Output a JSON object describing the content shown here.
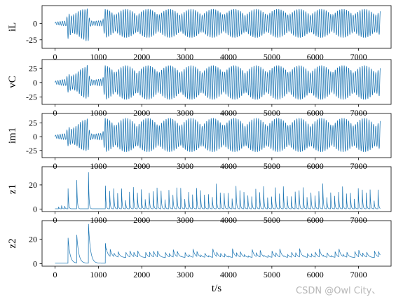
{
  "watermark": "CSDN @Owl City、",
  "chart_data": [
    {
      "type": "line",
      "ylabel": "iL",
      "xlabel": "",
      "xlim": [
        -300,
        7750
      ],
      "ylim": [
        -38,
        27
      ],
      "yticks": [
        -25,
        0
      ],
      "xticks": [
        0,
        1000,
        2000,
        3000,
        4000,
        5000,
        6000,
        7000
      ],
      "xtick_labels_visible": true,
      "color": "#1f77b4",
      "signal": "oscillation",
      "x": [
        0,
        250,
        300,
        500,
        700,
        760,
        800,
        1100,
        1150,
        7500
      ],
      "upper": [
        2,
        4,
        20,
        20,
        22,
        26,
        6,
        4,
        22,
        22
      ],
      "lower": [
        -2,
        -4,
        -30,
        -20,
        -26,
        -36,
        -6,
        -4,
        -22,
        -22
      ]
    },
    {
      "type": "line",
      "ylabel": "vC",
      "xlabel": "",
      "xlim": [
        -300,
        7750
      ],
      "ylim": [
        -38,
        40
      ],
      "yticks": [
        -25,
        0,
        25
      ],
      "xticks": [
        0,
        1000,
        2000,
        3000,
        4000,
        5000,
        6000,
        7000
      ],
      "xtick_labels_visible": true,
      "color": "#1f77b4",
      "signal": "oscillation",
      "x": [
        0,
        250,
        300,
        500,
        700,
        760,
        800,
        1100,
        1150,
        7500
      ],
      "upper": [
        3,
        6,
        20,
        20,
        28,
        36,
        8,
        6,
        30,
        30
      ],
      "lower": [
        -3,
        -6,
        -22,
        -18,
        -28,
        -34,
        -8,
        -6,
        -30,
        -30
      ]
    },
    {
      "type": "line",
      "ylabel": "im1",
      "xlabel": "",
      "xlim": [
        -300,
        7750
      ],
      "ylim": [
        -38,
        42
      ],
      "yticks": [
        -25,
        0,
        25
      ],
      "xticks": [
        0,
        1000,
        2000,
        3000,
        4000,
        5000,
        6000,
        7000
      ],
      "xtick_labels_visible": true,
      "color": "#1f77b4",
      "signal": "oscillation",
      "x": [
        0,
        250,
        300,
        500,
        700,
        760,
        800,
        1100,
        1150,
        7500
      ],
      "upper": [
        3,
        6,
        24,
        24,
        32,
        38,
        8,
        6,
        34,
        34
      ],
      "lower": [
        -3,
        -6,
        -22,
        -20,
        -26,
        -32,
        -8,
        -6,
        -28,
        -28
      ]
    },
    {
      "type": "line",
      "ylabel": "z1",
      "xlabel": "",
      "xlim": [
        -300,
        7750
      ],
      "ylim": [
        -2,
        35
      ],
      "yticks": [
        0,
        20
      ],
      "xticks": [
        0,
        1000,
        2000,
        3000,
        4000,
        5000,
        6000,
        7000
      ],
      "xtick_labels_visible": true,
      "color": "#1f77b4",
      "signal": "spikes",
      "base": 0.3,
      "decay": 12,
      "spikes": [
        {
          "x": 80,
          "h": 2
        },
        {
          "x": 150,
          "h": 3
        },
        {
          "x": 220,
          "h": 3
        },
        {
          "x": 300,
          "h": 17
        },
        {
          "x": 500,
          "h": 26
        },
        {
          "x": 770,
          "h": 33
        },
        {
          "x": 1160,
          "h": 21
        }
      ],
      "periodic": {
        "start": 1260,
        "end": 7500,
        "period": 91,
        "h_min": 8,
        "h_max": 22
      }
    },
    {
      "type": "line",
      "ylabel": "z2",
      "xlabel": "t/s",
      "xlim": [
        -300,
        7750
      ],
      "ylim": [
        -2,
        35
      ],
      "yticks": [
        0,
        20
      ],
      "xticks": [
        0,
        1000,
        2000,
        3000,
        4000,
        5000,
        6000,
        7000
      ],
      "xtick_labels_visible": true,
      "color": "#1f77b4",
      "signal": "spikes",
      "base": 0.4,
      "decay": 45,
      "spikes": [
        {
          "x": 300,
          "h": 21
        },
        {
          "x": 500,
          "h": 24
        },
        {
          "x": 770,
          "h": 33
        },
        {
          "x": 1160,
          "h": 17
        }
      ],
      "periodic": {
        "start": 1180,
        "end": 7500,
        "period": 91,
        "h_min": 5,
        "h_max": 13,
        "floor": 5
      }
    }
  ]
}
